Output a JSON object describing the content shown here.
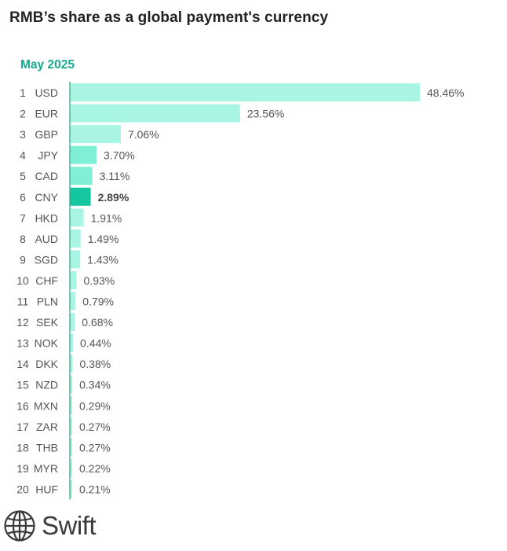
{
  "title": "RMB’s share as a global payment's currency",
  "subtitle": "May 2025",
  "colors": {
    "bar": "#a8f5e3",
    "bar_mid": "#7ff0d6",
    "highlight": "#14c79e",
    "axis": "#3a9a86",
    "label": "#555555"
  },
  "logo": {
    "text": "Swift",
    "icon": "globe-icon"
  },
  "chart_data": {
    "type": "bar",
    "orientation": "horizontal",
    "title": "RMB’s share as a global payment's currency",
    "subtitle": "May 2025",
    "ranks": [
      "1",
      "2",
      "3",
      "4",
      "5",
      "6",
      "7",
      "8",
      "9",
      "10",
      "11",
      "12",
      "13",
      "14",
      "15",
      "16",
      "17",
      "18",
      "19",
      "20"
    ],
    "categories": [
      "USD",
      "EUR",
      "GBP",
      "JPY",
      "CAD",
      "CNY",
      "HKD",
      "AUD",
      "SGD",
      "CHF",
      "PLN",
      "SEK",
      "NOK",
      "DKK",
      "NZD",
      "MXN",
      "ZAR",
      "THB",
      "MYR",
      "HUF"
    ],
    "values": [
      48.46,
      23.56,
      7.06,
      3.7,
      3.11,
      2.89,
      1.91,
      1.49,
      1.43,
      0.93,
      0.79,
      0.68,
      0.44,
      0.38,
      0.34,
      0.29,
      0.27,
      0.27,
      0.22,
      0.21
    ],
    "value_labels": [
      "48.46%",
      "23.56%",
      "7.06%",
      "3.70%",
      "3.11%",
      "2.89%",
      "1.91%",
      "1.49%",
      "1.43%",
      "0.93%",
      "0.79%",
      "0.68%",
      "0.44%",
      "0.38%",
      "0.34%",
      "0.29%",
      "0.27%",
      "0.27%",
      "0.22%",
      "0.21%"
    ],
    "highlight": "CNY",
    "xlim": [
      0,
      48.46
    ]
  }
}
